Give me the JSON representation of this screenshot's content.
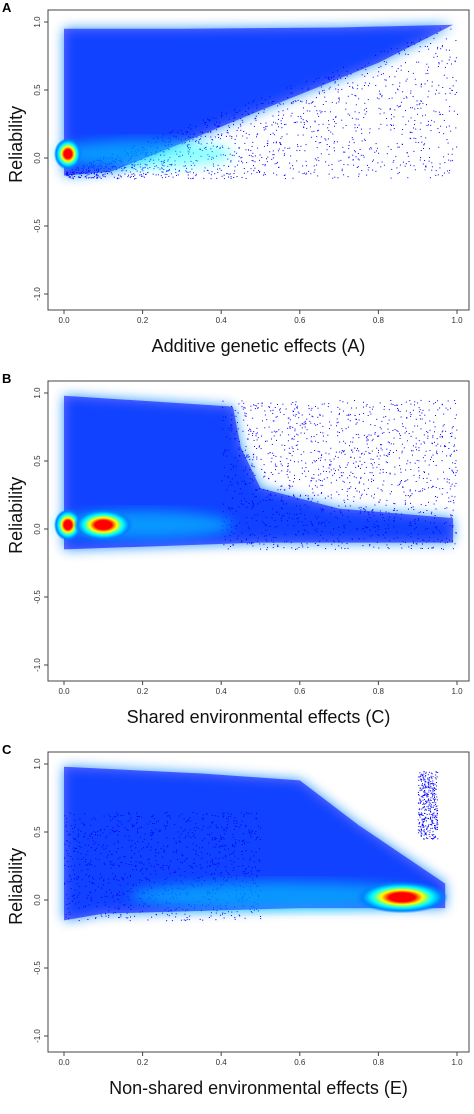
{
  "chart_data": [
    {
      "type": "scatter",
      "panel_label": "A",
      "xlabel": "Additive genetic effects (A)",
      "ylabel": "Reliability",
      "xlim": [
        0,
        1
      ],
      "ylim": [
        -1,
        1
      ],
      "x_ticks": [
        "0.0",
        "0.2",
        "0.4",
        "0.6",
        "0.8",
        "1.0"
      ],
      "y_ticks": [
        "-1.0",
        "-0.5",
        "0.0",
        "0.5",
        "1.0"
      ],
      "grid": false,
      "density_colors": [
        "#0000ff",
        "#0080ff",
        "#00ffff",
        "#ffff00",
        "#ff0000"
      ],
      "hotspots": [
        {
          "x": 0.01,
          "y": 0.03
        }
      ],
      "point_color": "#0000ff"
    },
    {
      "type": "scatter",
      "panel_label": "B",
      "xlabel": "Shared environmental effects (C)",
      "ylabel": "Reliability",
      "xlim": [
        0,
        1
      ],
      "ylim": [
        -1,
        1
      ],
      "x_ticks": [
        "0.0",
        "0.2",
        "0.4",
        "0.6",
        "0.8",
        "1.0"
      ],
      "y_ticks": [
        "-1.0",
        "-0.5",
        "0.0",
        "0.5",
        "1.0"
      ],
      "grid": false,
      "density_colors": [
        "#0000ff",
        "#0080ff",
        "#00ffff",
        "#ffff00",
        "#ff0000"
      ],
      "hotspots": [
        {
          "x": 0.01,
          "y": 0.03
        },
        {
          "x": 0.1,
          "y": 0.03
        }
      ],
      "point_color": "#0000ff"
    },
    {
      "type": "scatter",
      "panel_label": "C",
      "xlabel": "Non-shared environmental effects (E)",
      "ylabel": "Reliability",
      "xlim": [
        0,
        1
      ],
      "ylim": [
        -1,
        1
      ],
      "x_ticks": [
        "0.0",
        "0.2",
        "0.4",
        "0.6",
        "0.8",
        "1.0"
      ],
      "y_ticks": [
        "-1.0",
        "-0.5",
        "0.0",
        "0.5",
        "1.0"
      ],
      "grid": false,
      "density_colors": [
        "#0000ff",
        "#0080ff",
        "#00ffff",
        "#ffff00",
        "#ff0000"
      ],
      "hotspots": [
        {
          "x": 0.86,
          "y": 0.02
        }
      ],
      "point_color": "#0000ff"
    }
  ]
}
